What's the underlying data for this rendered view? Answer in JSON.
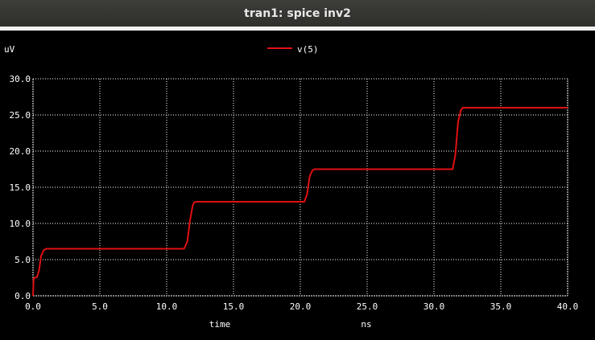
{
  "window": {
    "title": "tran1: spice inv2"
  },
  "colors": {
    "background": "#000000",
    "grid": "#ffffff",
    "text": "#ffffff",
    "series": "#e01010"
  },
  "chart_data": {
    "type": "line",
    "ylabel": "uV",
    "xlabel": "time",
    "xunit": "ns",
    "xlim": [
      0,
      40
    ],
    "ylim": [
      0,
      30
    ],
    "xticks": [
      "0.0",
      "5.0",
      "10.0",
      "15.0",
      "20.0",
      "25.0",
      "30.0",
      "35.0",
      "40.0"
    ],
    "yticks": [
      "0.0",
      "5.0",
      "10.0",
      "15.0",
      "20.0",
      "25.0",
      "30.0"
    ],
    "grid": true,
    "legend_position": "top-center",
    "series": [
      {
        "name": "v(5)",
        "x": [
          0,
          0.05,
          0.15,
          0.3,
          0.45,
          0.6,
          0.8,
          1.0,
          11.3,
          11.55,
          11.75,
          11.95,
          12.05,
          12.2,
          20.3,
          20.5,
          20.7,
          20.9,
          21.05,
          31.4,
          31.6,
          31.8,
          32.0,
          32.15,
          40
        ],
        "y": [
          0,
          2.4,
          2.5,
          2.6,
          3.5,
          5.5,
          6.3,
          6.5,
          6.5,
          7.5,
          10.5,
          12.5,
          12.9,
          13.0,
          13.0,
          14.0,
          16.5,
          17.3,
          17.5,
          17.5,
          19.5,
          24.0,
          25.6,
          26.0,
          26.0
        ]
      }
    ]
  }
}
